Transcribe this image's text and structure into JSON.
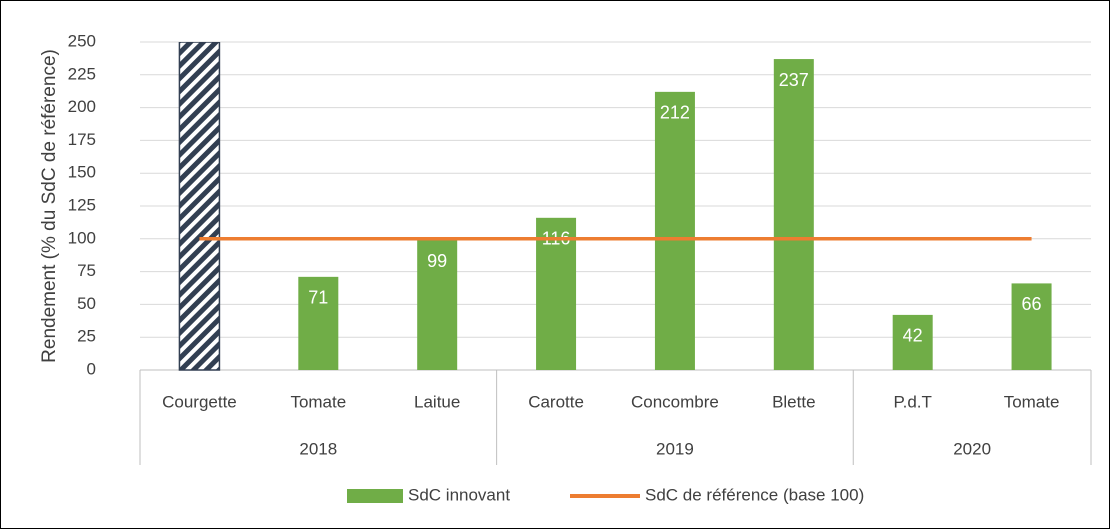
{
  "chart_data": {
    "type": "bar",
    "y_label": "Rendement (% du SdC de référence)",
    "categories": [
      "Courgette",
      "Tomate",
      "Laitue",
      "Carotte",
      "Concombre",
      "Blette",
      "P.d.T",
      "Tomate"
    ],
    "groups": [
      {
        "label": "2018",
        "span": 3
      },
      {
        "label": "2019",
        "span": 3
      },
      {
        "label": "2020",
        "span": 2
      }
    ],
    "series": [
      {
        "name": "SdC innovant",
        "color": "#70ad47",
        "values": [
          250,
          71,
          99,
          116,
          212,
          237,
          42,
          66
        ],
        "hatched": [
          0
        ],
        "hatch_color": "#323f52"
      },
      {
        "name": "SdC de référence (base 100)",
        "color": "#ed7d31",
        "type": "line",
        "values": [
          100,
          100,
          100,
          100,
          100,
          100,
          100,
          100
        ]
      }
    ],
    "ylim": [
      0,
      250
    ],
    "yticks": [
      0,
      25,
      50,
      75,
      100,
      125,
      150,
      175,
      200,
      225,
      250
    ],
    "grid": true
  }
}
